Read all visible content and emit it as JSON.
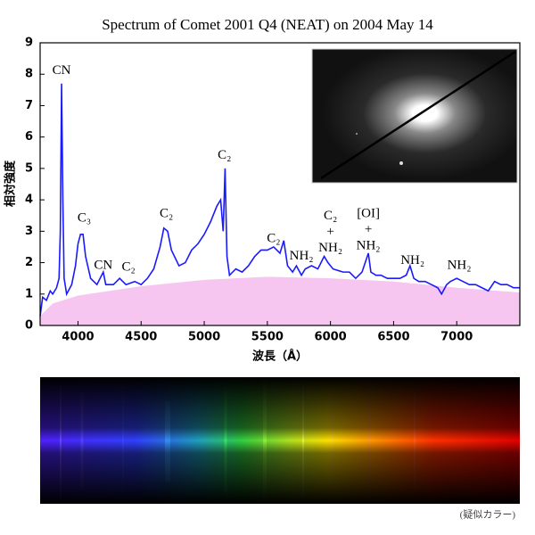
{
  "chart_data": {
    "type": "line",
    "title": "Spectrum of Comet 2001 Q4 (NEAT) on 2004 May 14",
    "xlabel": "波長（Å）",
    "ylabel": "相対強度",
    "xlim": [
      3700,
      7500
    ],
    "ylim": [
      0,
      9
    ],
    "xticks": [
      4000,
      4500,
      5000,
      5500,
      6000,
      6500,
      7000
    ],
    "yticks": [
      0,
      1,
      2,
      3,
      4,
      5,
      6,
      7,
      8,
      9
    ],
    "color": "#1a1aff",
    "x": [
      3700,
      3720,
      3750,
      3780,
      3800,
      3830,
      3850,
      3860,
      3870,
      3880,
      3890,
      3910,
      3950,
      3980,
      4000,
      4020,
      4040,
      4060,
      4100,
      4150,
      4200,
      4220,
      4280,
      4330,
      4380,
      4450,
      4500,
      4550,
      4600,
      4650,
      4680,
      4710,
      4740,
      4800,
      4850,
      4900,
      4950,
      5000,
      5050,
      5100,
      5130,
      5150,
      5165,
      5180,
      5200,
      5250,
      5300,
      5350,
      5400,
      5450,
      5500,
      5550,
      5600,
      5630,
      5660,
      5700,
      5730,
      5770,
      5800,
      5850,
      5900,
      5950,
      5980,
      6020,
      6100,
      6150,
      6200,
      6250,
      6300,
      6320,
      6360,
      6400,
      6450,
      6500,
      6550,
      6600,
      6630,
      6660,
      6700,
      6750,
      6800,
      6850,
      6880,
      6920,
      6950,
      7000,
      7050,
      7100,
      7150,
      7200,
      7250,
      7300,
      7350,
      7400,
      7450,
      7500
    ],
    "values": [
      0.3,
      0.9,
      0.8,
      1.1,
      1.0,
      1.2,
      1.5,
      3.0,
      7.7,
      4.0,
      1.5,
      1.0,
      1.3,
      1.9,
      2.6,
      2.9,
      2.9,
      2.2,
      1.5,
      1.3,
      1.7,
      1.3,
      1.3,
      1.5,
      1.3,
      1.4,
      1.3,
      1.5,
      1.8,
      2.5,
      3.1,
      3.0,
      2.4,
      1.9,
      2.0,
      2.4,
      2.6,
      2.9,
      3.3,
      3.8,
      4.0,
      3.0,
      5.0,
      2.2,
      1.6,
      1.8,
      1.7,
      1.9,
      2.2,
      2.4,
      2.4,
      2.5,
      2.3,
      2.7,
      1.9,
      1.7,
      1.9,
      1.6,
      1.8,
      1.9,
      1.8,
      2.2,
      2.0,
      1.8,
      1.7,
      1.7,
      1.5,
      1.7,
      2.3,
      1.7,
      1.6,
      1.6,
      1.5,
      1.5,
      1.5,
      1.6,
      1.9,
      1.5,
      1.4,
      1.4,
      1.3,
      1.2,
      1.0,
      1.3,
      1.4,
      1.5,
      1.4,
      1.3,
      1.3,
      1.2,
      1.1,
      1.4,
      1.3,
      1.3,
      1.2,
      1.2
    ],
    "continuum": {
      "color": "#f6c6f0",
      "x": [
        3700,
        3800,
        4000,
        4500,
        5000,
        5500,
        6000,
        6500,
        7000,
        7500
      ],
      "values": [
        0.3,
        0.7,
        0.95,
        1.25,
        1.45,
        1.55,
        1.5,
        1.4,
        1.2,
        1.05
      ]
    },
    "annotations": [
      {
        "lines": [
          "CN"
        ],
        "x": 3870,
        "y": 8.1
      },
      {
        "lines": [
          "C₃"
        ],
        "x": 4050,
        "y": 3.4
      },
      {
        "lines": [
          "CN"
        ],
        "x": 4200,
        "y": 1.9
      },
      {
        "lines": [
          "C₂"
        ],
        "x": 4400,
        "y": 1.85
      },
      {
        "lines": [
          "C₂"
        ],
        "x": 4700,
        "y": 3.55
      },
      {
        "lines": [
          "C₂"
        ],
        "x": 5160,
        "y": 5.4
      },
      {
        "lines": [
          "C₂"
        ],
        "x": 5550,
        "y": 2.75
      },
      {
        "lines": [
          "NH₂"
        ],
        "x": 5770,
        "y": 2.2
      },
      {
        "lines": [
          "C₂",
          "+",
          "NH₂"
        ],
        "x": 6000,
        "y": 3.47
      },
      {
        "lines": [
          "[OI]",
          "+",
          "NH₂"
        ],
        "x": 6300,
        "y": 3.55
      },
      {
        "lines": [
          "NH₂"
        ],
        "x": 6650,
        "y": 2.05
      },
      {
        "lines": [
          "NH₂"
        ],
        "x": 7020,
        "y": 1.9
      }
    ],
    "caption": "(疑似カラー)"
  }
}
